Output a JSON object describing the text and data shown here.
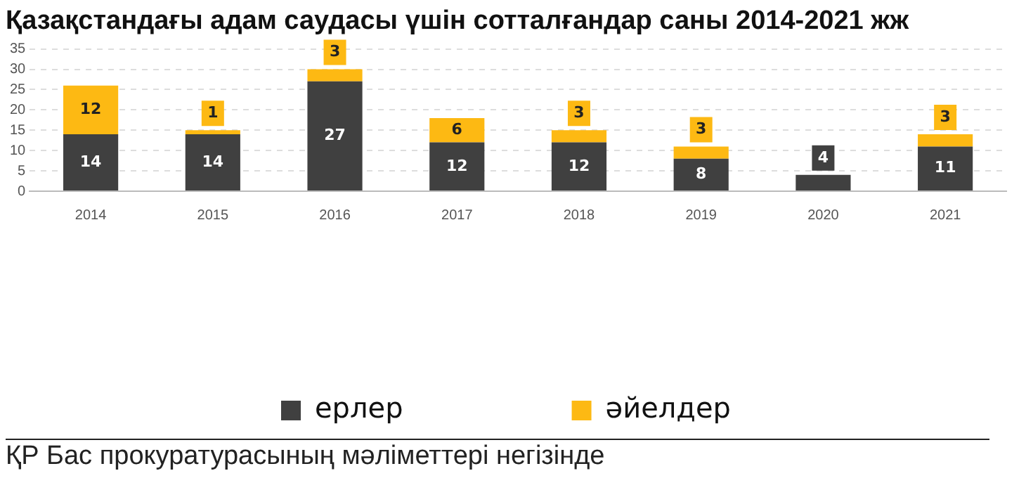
{
  "chart_data": {
    "type": "bar",
    "title": "Қазақстандағы адам саудасы үшін сотталғандар саны 2014-2021 жж",
    "categories": [
      "2014",
      "2015",
      "2016",
      "2017",
      "2018",
      "2019",
      "2020",
      "2021"
    ],
    "series": [
      {
        "name": "ерлер",
        "color": "#404040",
        "values": [
          14,
          14,
          27,
          12,
          12,
          8,
          4,
          11
        ]
      },
      {
        "name": "әйелдер",
        "color": "#fdb913",
        "values": [
          12,
          1,
          3,
          6,
          3,
          3,
          null,
          3
        ]
      }
    ],
    "stacked": true,
    "ylim": [
      0,
      35
    ],
    "yticks": [
      0,
      5,
      10,
      15,
      20,
      25,
      30,
      35
    ],
    "grid": "y",
    "legend": "bottom",
    "data_labels": true,
    "annotations": [
      "ҚР Бас прокуратурасының мәліметтері негізінде"
    ]
  }
}
